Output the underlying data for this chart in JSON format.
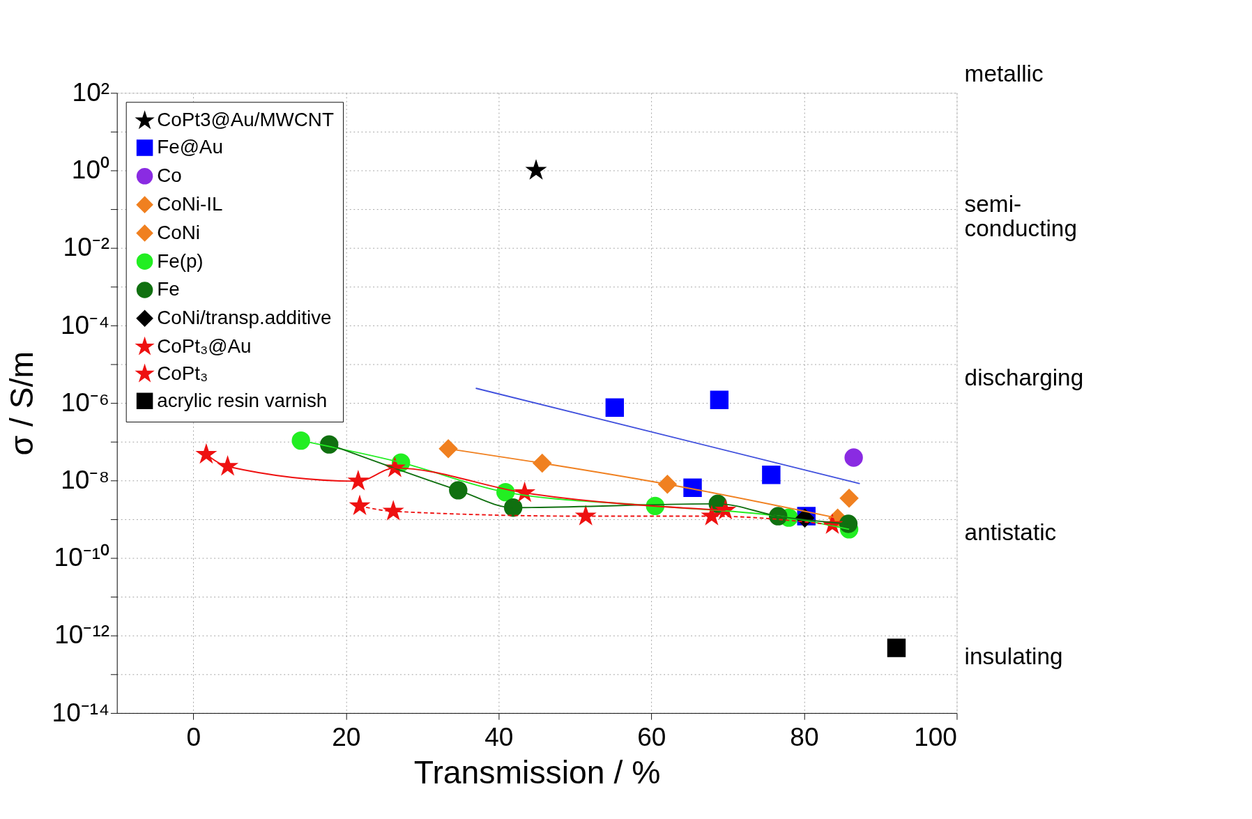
{
  "chart_data": {
    "type": "scatter",
    "xlabel": "Transmission / %",
    "ylabel": "σ / S/m",
    "xlim": [
      -10,
      100
    ],
    "xticks": [
      0,
      20,
      40,
      60,
      80,
      100
    ],
    "ylim": [
      1e-14,
      100
    ],
    "log": true,
    "yticks": [
      {
        "value": 1e-14,
        "label": "10⁻¹⁴"
      },
      {
        "value": 1e-13,
        "label": null
      },
      {
        "value": 1e-12,
        "label": "10⁻¹²"
      },
      {
        "value": 1e-11,
        "label": null
      },
      {
        "value": 1e-10,
        "label": "10⁻¹⁰"
      },
      {
        "value": 1e-09,
        "label": null
      },
      {
        "value": 1e-08,
        "label": "10⁻⁸"
      },
      {
        "value": 1e-07,
        "label": null
      },
      {
        "value": 1e-06,
        "label": "10⁻⁶"
      },
      {
        "value": 1e-05,
        "label": null
      },
      {
        "value": 0.0001,
        "label": "10⁻⁴"
      },
      {
        "value": 0.001,
        "label": null
      },
      {
        "value": 0.01,
        "label": "10⁻²"
      },
      {
        "value": 0.1,
        "label": null
      },
      {
        "value": 1,
        "label": "10⁰"
      },
      {
        "value": 10,
        "label": null
      },
      {
        "value": 100,
        "label": "10²"
      }
    ],
    "grid": true,
    "legend": "top left",
    "annotations": [
      "metallic",
      "semi-\nconducting",
      "discharging",
      "antistatic",
      "insulating"
    ],
    "series": [
      {
        "name": "CoPt3@Au/MWCNT",
        "marker": "star",
        "color": "#000000",
        "x": [
          44.9
        ],
        "values": [
          1
        ]
      },
      {
        "name": "Fe@Au",
        "marker": "square",
        "color": "#0000ff",
        "x": [
          55.2,
          65.4,
          68.9,
          75.7,
          80.3
        ],
        "values": [
          7.6e-07,
          6.5e-09,
          1.2e-06,
          1.4e-08,
          1.2e-09
        ]
      },
      {
        "name": "Co",
        "marker": "circle",
        "color": "#8a2be2",
        "x": [
          86.5
        ],
        "values": [
          3.9e-08
        ]
      },
      {
        "name": "CoNi-IL",
        "marker": "diamond",
        "color": "#f08020",
        "x": [
          85.9
        ],
        "values": [
          3.5e-09
        ]
      },
      {
        "name": "CoNi",
        "type": "line",
        "marker": "diamond",
        "color": "#f08020",
        "x": [
          33.4,
          45.7,
          62.1,
          84.4
        ],
        "values": [
          6.6e-08,
          2.8e-08,
          8e-09,
          1.07e-09
        ]
      },
      {
        "name": "Fe(p)",
        "type": "line",
        "marker": "circle",
        "color": "#22ee22",
        "x": [
          14.1,
          27.2,
          40.9,
          60.5,
          78,
          85.9
        ],
        "values": [
          1.07e-07,
          2.9e-08,
          5e-09,
          2.2e-09,
          1.1e-09,
          5.5e-10
        ]
      },
      {
        "name": "Fe",
        "type": "line",
        "marker": "circle",
        "color": "#107010",
        "x": [
          17.8,
          34.7,
          41.9,
          68.7,
          76.6,
          85.8
        ],
        "values": [
          8.5e-08,
          5.6e-09,
          2e-09,
          2.5e-09,
          1.2e-09,
          7.6e-10
        ]
      },
      {
        "name": "CoNi/transp.additive",
        "marker": "diamond",
        "color": "#000000",
        "x": [
          80.1
        ],
        "values": [
          1.07e-09
        ]
      },
      {
        "name": "CoPt₃@Au",
        "type": "line",
        "marker": "star",
        "color": "#ee1111",
        "x": [
          1.7,
          4.5,
          21.6,
          26.4,
          43.4,
          69.7
        ],
        "values": [
          4.7e-08,
          2.3e-08,
          9.6e-09,
          2.1e-08,
          4.8e-09,
          1.7e-09
        ]
      },
      {
        "name": "CoPt₃",
        "type": "line",
        "marker": "star",
        "line_style": "dashed",
        "color": "#ee1111",
        "x": [
          21.8,
          26.2,
          51.4,
          67.9,
          83.7
        ],
        "values": [
          2.2e-09,
          1.6e-09,
          1.2e-09,
          1.2e-09,
          7.2e-10
        ]
      },
      {
        "name": "acrylic resin varnish",
        "marker": "square",
        "color": "#000000",
        "x": [
          92.1
        ],
        "values": [
          4.8e-13
        ]
      },
      {
        "type": "line",
        "marker": "none",
        "color": "#4050dd",
        "x": [
          37,
          87.3
        ],
        "values": [
          2.4e-06,
          8.3e-09
        ]
      }
    ]
  }
}
